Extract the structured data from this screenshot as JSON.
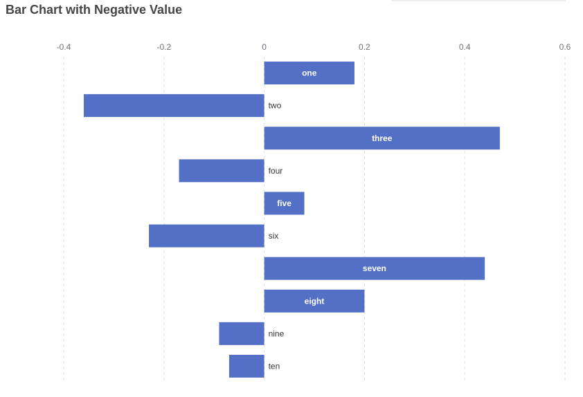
{
  "title": "Bar Chart with Negative Value",
  "colors": {
    "bar": "#5470c6",
    "grid": "#e0e0e0",
    "tick_text": "#6e7079",
    "inside_label": "#ffffff",
    "outside_label": "#333333"
  },
  "chart_data": {
    "type": "bar",
    "orientation": "horizontal",
    "title": "Bar Chart with Negative Value",
    "categories": [
      "one",
      "two",
      "three",
      "four",
      "five",
      "six",
      "seven",
      "eight",
      "nine",
      "ten"
    ],
    "values": [
      0.18,
      -0.36,
      0.47,
      -0.17,
      0.08,
      -0.23,
      0.44,
      0.2,
      -0.09,
      -0.07
    ],
    "xlim": [
      -0.4,
      0.6
    ],
    "xticks": [
      -0.4,
      -0.2,
      0,
      0.2,
      0.4,
      0.6
    ],
    "xtick_labels": [
      "-0.4",
      "-0.2",
      "0",
      "0.2",
      "0.4",
      "0.6"
    ],
    "x_axis_position": "top",
    "grid": true,
    "grid_style": "dashed",
    "xlabel": "",
    "ylabel": ""
  }
}
